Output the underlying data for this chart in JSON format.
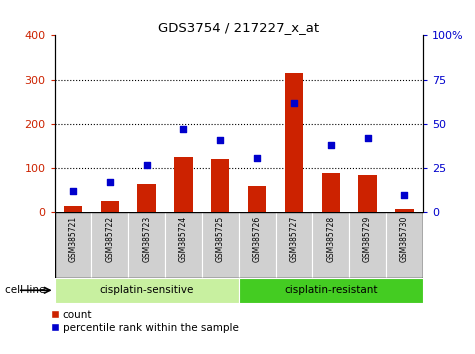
{
  "title": "GDS3754 / 217227_x_at",
  "samples": [
    "GSM385721",
    "GSM385722",
    "GSM385723",
    "GSM385724",
    "GSM385725",
    "GSM385726",
    "GSM385727",
    "GSM385728",
    "GSM385729",
    "GSM385730"
  ],
  "count_values": [
    15,
    25,
    65,
    125,
    120,
    60,
    315,
    90,
    85,
    8
  ],
  "percentile_values": [
    12,
    17,
    27,
    47,
    41,
    31,
    62,
    38,
    42,
    10
  ],
  "left_ylim": [
    0,
    400
  ],
  "right_ylim": [
    0,
    100
  ],
  "left_yticks": [
    0,
    100,
    200,
    300,
    400
  ],
  "right_yticks": [
    0,
    25,
    50,
    75,
    100
  ],
  "right_yticklabels": [
    "0",
    "25",
    "50",
    "75",
    "100%"
  ],
  "bar_color": "#cc2200",
  "scatter_color": "#0000cc",
  "groups": [
    {
      "label": "cisplatin-sensitive",
      "start": 0,
      "end": 5,
      "color": "#c8f0a0"
    },
    {
      "label": "cisplatin-resistant",
      "start": 5,
      "end": 10,
      "color": "#44cc22"
    }
  ],
  "cell_line_label": "cell line",
  "legend_count_label": "count",
  "legend_percentile_label": "percentile rank within the sample",
  "background_color": "#ffffff",
  "xticklabel_bgcolor": "#d0d0d0",
  "dotted_line_color": "#000000",
  "grid_yticks": [
    100,
    200,
    300
  ]
}
